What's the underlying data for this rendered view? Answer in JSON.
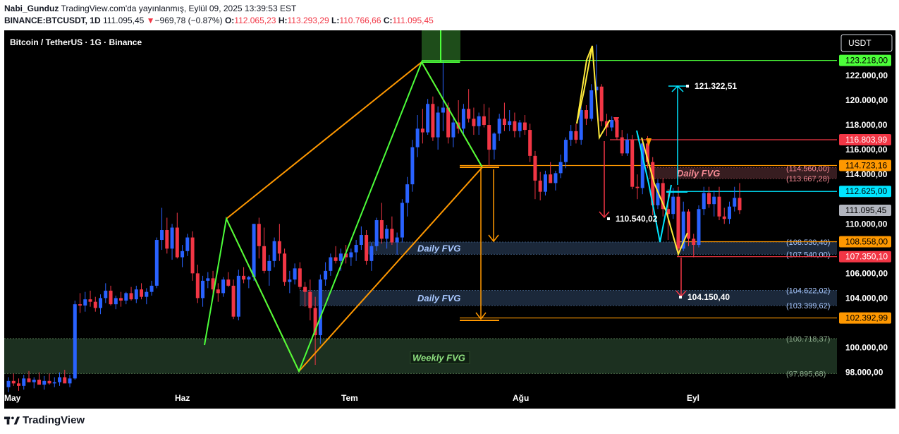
{
  "header": {
    "publisher": "Nabi_Gunduz",
    "published": "TradingView.com'da yayınlanmış, Eylül 09, 2025 13:39:53 EST",
    "symbol": "BINANCE:BTCUSDT, 1D",
    "last": "111.095,45",
    "change_arrow": "▼",
    "change": "−969,78 (−0.87%)",
    "o_label": "O:",
    "o": "112.065,23",
    "h_label": "H:",
    "h": "113.293,29",
    "l_label": "L:",
    "l": "110.766,66",
    "c_label": "C:",
    "c": "111.095,45"
  },
  "legend_title": "Bitcoin / TetherUS · 1G · Binance",
  "currency_button": "USDT",
  "footer_brand": "TradingView",
  "colors": {
    "bg": "#000000",
    "up": "#2962ff",
    "down": "#f23645",
    "green": "#4cff3a",
    "orange": "#ff9800",
    "yellow": "#ffeb3b",
    "cyan": "#00e5ff",
    "red": "#f23645",
    "fvg": "#1c2a3d",
    "weekly_fvg": "#1e3322"
  },
  "chart_data": {
    "type": "candlestick",
    "title": "Bitcoin / TetherUS · 1G · Binance",
    "ylim": [
      96600,
      126600
    ],
    "x_labels": [
      "May",
      "Haz",
      "Tem",
      "Ağu",
      "Eyl"
    ],
    "y_ticks": [
      {
        "v": 122000,
        "label": "122.000,00"
      },
      {
        "v": 120000,
        "label": "120.000,00"
      },
      {
        "v": 118000,
        "label": "118.000,00"
      },
      {
        "v": 116000,
        "label": "116.000,00"
      },
      {
        "v": 114000,
        "label": "114.000,00"
      },
      {
        "v": 110000,
        "label": "110.000,00"
      },
      {
        "v": 106000,
        "label": "106.000,00"
      },
      {
        "v": 104000,
        "label": "104.000,00"
      },
      {
        "v": 100000,
        "label": "100.000,00"
      },
      {
        "v": 98000,
        "label": "98.000,00"
      }
    ],
    "price_tags": [
      {
        "v": 123218,
        "label": "123.218,00",
        "bg": "#4cff3a",
        "fg": "#000000"
      },
      {
        "v": 116803.99,
        "label": "116.803,99",
        "bg": "#f23645",
        "fg": "#ffffff"
      },
      {
        "v": 114723.16,
        "label": "114.723,16",
        "bg": "#ff9800",
        "fg": "#000000"
      },
      {
        "v": 112625,
        "label": "112.625,00",
        "bg": "#00e5ff",
        "fg": "#000000"
      },
      {
        "v": 111095.45,
        "label": "111.095,45",
        "bg": "#b2b5be",
        "fg": "#000000"
      },
      {
        "v": 108558,
        "label": "108.558,00",
        "bg": "#ff9800",
        "fg": "#000000"
      },
      {
        "v": 107350.1,
        "label": "107.350,10",
        "bg": "#f23645",
        "fg": "#ffffff"
      },
      {
        "v": 102392.99,
        "label": "102.392,99",
        "bg": "#ff9800",
        "fg": "#000000"
      }
    ],
    "fvg_zones": [
      {
        "name": "Daily FVG",
        "low": 113667.28,
        "high": 114560,
        "low_label": "(113.667,28)",
        "high_label": "(114.560,00)",
        "kind": "bear"
      },
      {
        "name": "Daily FVG",
        "low": 107540,
        "high": 108530.4,
        "low_label": "(107.540,00)",
        "high_label": "(108.530,40)",
        "kind": "bull"
      },
      {
        "name": "Daily FVG",
        "low": 103399.62,
        "high": 104622.02,
        "low_label": "(103.399,62)",
        "high_label": "(104.622,02)",
        "kind": "bull"
      },
      {
        "name": "Weekly FVG",
        "low": 97895.68,
        "high": 100718.37,
        "low_label": "(97.895,68)",
        "high_label": "(100.718,37)",
        "kind": "weekly"
      }
    ],
    "targets": [
      {
        "v": 121322.51,
        "label": "121.322,51"
      },
      {
        "v": 110540.02,
        "label": "110.540,02"
      },
      {
        "v": 104150.4,
        "label": "104.150,40"
      }
    ],
    "candles_ohlc": [
      [
        96800,
        97600,
        96400,
        97300
      ],
      [
        97300,
        97900,
        96900,
        97100
      ],
      [
        97100,
        97500,
        96500,
        96900
      ],
      [
        96900,
        97800,
        96600,
        97500
      ],
      [
        97500,
        98100,
        97200,
        97200
      ],
      [
        97200,
        97600,
        96700,
        97400
      ],
      [
        97400,
        98000,
        97100,
        97000
      ],
      [
        97000,
        97700,
        96600,
        97300
      ],
      [
        97300,
        97900,
        97000,
        97100
      ],
      [
        97100,
        97600,
        96800,
        97200
      ],
      [
        97200,
        98000,
        96900,
        97600
      ],
      [
        97600,
        98200,
        97400,
        97100
      ],
      [
        97100,
        97800,
        96800,
        97500
      ],
      [
        97500,
        103800,
        97400,
        103500
      ],
      [
        103500,
        104400,
        102800,
        103400
      ],
      [
        103400,
        104500,
        102900,
        103900
      ],
      [
        103900,
        104600,
        103300,
        103700
      ],
      [
        103700,
        104100,
        102900,
        103200
      ],
      [
        103200,
        104300,
        102700,
        104000
      ],
      [
        104000,
        105200,
        103600,
        104600
      ],
      [
        104600,
        105000,
        103400,
        103500
      ],
      [
        103500,
        104200,
        103100,
        104000
      ],
      [
        104000,
        104500,
        103300,
        103800
      ],
      [
        103800,
        104500,
        103500,
        104400
      ],
      [
        104400,
        104900,
        103800,
        103900
      ],
      [
        103900,
        105000,
        103600,
        104700
      ],
      [
        104700,
        105200,
        103900,
        104100
      ],
      [
        104100,
        104800,
        103500,
        104500
      ],
      [
        104500,
        105400,
        104200,
        105000
      ],
      [
        105000,
        108900,
        104800,
        108700
      ],
      [
        108700,
        111300,
        107900,
        109500
      ],
      [
        109500,
        110500,
        107600,
        108000
      ],
      [
        108000,
        110000,
        107100,
        109700
      ],
      [
        109700,
        110900,
        107200,
        107300
      ],
      [
        107300,
        108300,
        106500,
        107800
      ],
      [
        107800,
        109200,
        107400,
        108900
      ],
      [
        108900,
        109400,
        105400,
        106000
      ],
      [
        106000,
        106700,
        103600,
        104000
      ],
      [
        104000,
        105800,
        103300,
        105400
      ],
      [
        105400,
        106100,
        104800,
        105600
      ],
      [
        105600,
        106200,
        104300,
        104700
      ],
      [
        104700,
        105200,
        103700,
        104400
      ],
      [
        104400,
        105700,
        104100,
        105500
      ],
      [
        105500,
        106100,
        104900,
        105000
      ],
      [
        105000,
        105500,
        102300,
        102500
      ],
      [
        102500,
        106300,
        102200,
        105800
      ],
      [
        105800,
        106500,
        105200,
        105500
      ],
      [
        105500,
        105800,
        104800,
        105700
      ],
      [
        105700,
        110000,
        105400,
        110000
      ],
      [
        110000,
        110500,
        107200,
        108200
      ],
      [
        108200,
        109700,
        106000,
        106200
      ],
      [
        106200,
        107500,
        105000,
        107000
      ],
      [
        107000,
        108900,
        106500,
        108600
      ],
      [
        108600,
        110000,
        107000,
        107600
      ],
      [
        107600,
        108000,
        105000,
        105300
      ],
      [
        105300,
        106200,
        104400,
        105500
      ],
      [
        105500,
        106800,
        105100,
        106400
      ],
      [
        106400,
        106900,
        104700,
        104900
      ],
      [
        104900,
        105300,
        103300,
        104500
      ],
      [
        104500,
        105500,
        102200,
        103200
      ],
      [
        103200,
        104100,
        98600,
        101000
      ],
      [
        101000,
        105900,
        100300,
        105500
      ],
      [
        105500,
        106900,
        105000,
        106200
      ],
      [
        106200,
        107600,
        105800,
        107300
      ],
      [
        107300,
        108200,
        106800,
        107000
      ],
      [
        107000,
        108000,
        106200,
        107600
      ],
      [
        107600,
        108300,
        106800,
        107300
      ],
      [
        107300,
        108000,
        106600,
        107700
      ],
      [
        107700,
        108700,
        107000,
        108300
      ],
      [
        108300,
        109800,
        107900,
        109100
      ],
      [
        109100,
        109500,
        106700,
        107000
      ],
      [
        107000,
        108500,
        106200,
        108200
      ],
      [
        108200,
        110500,
        107800,
        110300
      ],
      [
        110300,
        111700,
        108400,
        108800
      ],
      [
        108800,
        109900,
        108000,
        109600
      ],
      [
        109600,
        110600,
        108300,
        108500
      ],
      [
        108500,
        109300,
        107500,
        108900
      ],
      [
        108900,
        112000,
        108500,
        111700
      ],
      [
        111700,
        113800,
        110600,
        113200
      ],
      [
        113200,
        116800,
        112600,
        116200
      ],
      [
        116200,
        118800,
        115400,
        117700
      ],
      [
        117700,
        119300,
        116500,
        117400
      ],
      [
        117400,
        120100,
        117200,
        119700
      ],
      [
        119700,
        120300,
        116700,
        117000
      ],
      [
        117000,
        119500,
        116000,
        119000
      ],
      [
        119000,
        123200,
        117500,
        119400
      ],
      [
        119400,
        119800,
        116500,
        117000
      ],
      [
        117000,
        118500,
        116200,
        118200
      ],
      [
        118200,
        120000,
        117300,
        117700
      ],
      [
        117700,
        119700,
        117100,
        119300
      ],
      [
        119300,
        120900,
        118200,
        118500
      ],
      [
        118500,
        119400,
        117200,
        117900
      ],
      [
        117900,
        119000,
        117200,
        118700
      ],
      [
        118700,
        119700,
        117800,
        118000
      ],
      [
        118000,
        119400,
        114700,
        116000
      ],
      [
        116000,
        117400,
        115200,
        117300
      ],
      [
        117300,
        118900,
        116700,
        118500
      ],
      [
        118500,
        119800,
        117500,
        118000
      ],
      [
        118000,
        119200,
        117500,
        118300
      ],
      [
        118300,
        119000,
        117000,
        117500
      ],
      [
        117500,
        118400,
        117000,
        118200
      ],
      [
        118200,
        118800,
        117200,
        117600
      ],
      [
        117600,
        118100,
        115000,
        115500
      ],
      [
        115500,
        115900,
        112000,
        113500
      ],
      [
        113500,
        114200,
        111900,
        112600
      ],
      [
        112600,
        114300,
        112300,
        114000
      ],
      [
        114000,
        115000,
        113400,
        113300
      ],
      [
        113300,
        114300,
        112700,
        114100
      ],
      [
        114100,
        115600,
        113700,
        115000
      ],
      [
        115000,
        117000,
        114500,
        116800
      ],
      [
        116800,
        118000,
        116300,
        117500
      ],
      [
        117500,
        118100,
        116500,
        116800
      ],
      [
        116800,
        119800,
        116400,
        119200
      ],
      [
        119200,
        119600,
        118000,
        118500
      ],
      [
        118500,
        121300,
        118300,
        120800
      ],
      [
        120800,
        124500,
        119800,
        121100
      ],
      [
        121100,
        121300,
        117900,
        118300
      ],
      [
        118300,
        118900,
        117100,
        117800
      ],
      [
        117800,
        118700,
        117500,
        118400
      ],
      [
        118400,
        118600,
        116800,
        117000
      ],
      [
        117000,
        117600,
        115500,
        115700
      ],
      [
        115700,
        117300,
        115500,
        116800
      ],
      [
        116800,
        117200,
        112800,
        113000
      ],
      [
        113000,
        114000,
        112000,
        112900
      ],
      [
        112900,
        116900,
        112400,
        116500
      ],
      [
        116500,
        117100,
        114500,
        115000
      ],
      [
        115000,
        115400,
        110700,
        111500
      ],
      [
        111500,
        113600,
        111200,
        113300
      ],
      [
        113300,
        113700,
        110600,
        111200
      ],
      [
        111200,
        112800,
        108700,
        110800
      ],
      [
        110800,
        112900,
        110400,
        112200
      ],
      [
        112200,
        113000,
        107400,
        108000
      ],
      [
        108000,
        111800,
        107800,
        111000
      ],
      [
        111000,
        111200,
        108200,
        108800
      ],
      [
        108800,
        109200,
        107300,
        108300
      ],
      [
        108300,
        111500,
        108100,
        111200
      ],
      [
        111200,
        113000,
        110700,
        112500
      ],
      [
        112500,
        113000,
        111300,
        111600
      ],
      [
        111600,
        112700,
        110600,
        112200
      ],
      [
        112200,
        113000,
        110300,
        110600
      ],
      [
        110600,
        111300,
        110000,
        110400
      ],
      [
        110400,
        111800,
        110000,
        111400
      ],
      [
        111400,
        113000,
        111000,
        112100
      ],
      [
        112100,
        113300,
        110800,
        111100
      ]
    ],
    "price_lines": [
      {
        "v": 123218,
        "x1": 598,
        "x2": 1187,
        "color": "#4cff3a"
      },
      {
        "v": 116803.99,
        "x1": 865,
        "x2": 1187,
        "color": "#f23645"
      },
      {
        "v": 114723.16,
        "x1": 652,
        "x2": 1187,
        "color": "#ff9800"
      },
      {
        "v": 112625,
        "x1": 945,
        "x2": 1187,
        "color": "#00e5ff"
      },
      {
        "v": 108558,
        "x1": 960,
        "x2": 1187,
        "color": "#ff9800"
      },
      {
        "v": 107350.1,
        "x1": 960,
        "x2": 1187,
        "color": "#f23645"
      },
      {
        "v": 102392.99,
        "x1": 652,
        "x2": 1187,
        "color": "#ff9800"
      }
    ]
  }
}
